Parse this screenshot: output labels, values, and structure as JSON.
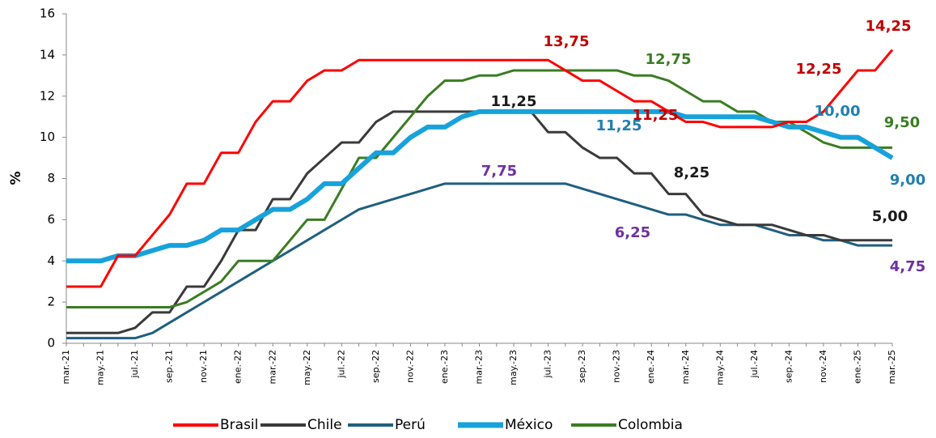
{
  "chart_data": {
    "type": "line",
    "y_label": "%",
    "categories": [
      "mar.-21",
      null,
      "may.-21",
      null,
      "jul.-21",
      null,
      "sep.-21",
      null,
      "nov.-21",
      null,
      "ene.-22",
      null,
      "mar.-22",
      null,
      "may.-22",
      null,
      "jul.-22",
      null,
      "sep.-22",
      null,
      "nov.-22",
      null,
      "ene.-23",
      null,
      "mar.-23",
      null,
      "may.-23",
      null,
      "jul.-23",
      null,
      "sep.-23",
      null,
      "nov.-23",
      null,
      "ene.-24",
      null,
      "mar.-24",
      null,
      "may.-24",
      null,
      "jul.-24",
      null,
      "sep.-24",
      null,
      "nov.-24",
      null,
      "ene.-25",
      null,
      "mar.-25"
    ],
    "ylim": [
      0,
      16
    ],
    "yticks": [
      0,
      2,
      4,
      6,
      8,
      10,
      12,
      14,
      16
    ],
    "grid": false,
    "legend": "bottom",
    "series": [
      {
        "name": "Brasil",
        "color": "#ff0000",
        "values": [
          2.75,
          2.75,
          2.75,
          4.25,
          4.25,
          5.25,
          6.25,
          7.75,
          7.75,
          9.25,
          9.25,
          10.75,
          11.75,
          11.75,
          12.75,
          13.25,
          13.25,
          13.75,
          13.75,
          13.75,
          13.75,
          13.75,
          13.75,
          13.75,
          13.75,
          13.75,
          13.75,
          13.75,
          13.75,
          13.25,
          12.75,
          12.75,
          12.25,
          11.75,
          11.75,
          11.25,
          10.75,
          10.75,
          10.5,
          10.5,
          10.5,
          10.5,
          10.75,
          10.75,
          11.25,
          12.25,
          13.25,
          13.25,
          14.25
        ]
      },
      {
        "name": "Chile",
        "color": "#3a3a3a",
        "values": [
          0.5,
          0.5,
          0.5,
          0.5,
          0.75,
          1.5,
          1.5,
          2.75,
          2.75,
          4.0,
          5.5,
          5.5,
          7.0,
          7.0,
          8.25,
          9.0,
          9.75,
          9.75,
          10.75,
          11.25,
          11.25,
          11.25,
          11.25,
          11.25,
          11.25,
          11.25,
          11.25,
          11.25,
          10.25,
          10.25,
          9.5,
          9.0,
          9.0,
          8.25,
          8.25,
          7.25,
          7.25,
          6.25,
          6.0,
          5.75,
          5.75,
          5.75,
          5.5,
          5.25,
          5.25,
          5.0,
          5.0,
          5.0,
          5.0
        ]
      },
      {
        "name": "Perú",
        "color": "#1f5f7f",
        "values": [
          0.25,
          0.25,
          0.25,
          0.25,
          0.25,
          0.5,
          1.0,
          1.5,
          2.0,
          2.5,
          3.0,
          3.5,
          4.0,
          4.5,
          5.0,
          5.5,
          6.0,
          6.5,
          6.75,
          7.0,
          7.25,
          7.5,
          7.75,
          7.75,
          7.75,
          7.75,
          7.75,
          7.75,
          7.75,
          7.75,
          7.5,
          7.25,
          7.0,
          6.75,
          6.5,
          6.25,
          6.25,
          6.0,
          5.75,
          5.75,
          5.75,
          5.5,
          5.25,
          5.25,
          5.0,
          5.0,
          4.75,
          4.75,
          4.75
        ]
      },
      {
        "name": "México",
        "color": "#17a2dc",
        "values": [
          4.0,
          4.0,
          4.0,
          4.25,
          4.25,
          4.5,
          4.75,
          4.75,
          5.0,
          5.5,
          5.5,
          6.0,
          6.5,
          6.5,
          7.0,
          7.75,
          7.75,
          8.5,
          9.25,
          9.25,
          10.0,
          10.5,
          10.5,
          11.0,
          11.25,
          11.25,
          11.25,
          11.25,
          11.25,
          11.25,
          11.25,
          11.25,
          11.25,
          11.25,
          11.25,
          11.25,
          11.0,
          11.0,
          11.0,
          11.0,
          11.0,
          10.75,
          10.5,
          10.5,
          10.25,
          10.0,
          10.0,
          9.5,
          9.0
        ]
      },
      {
        "name": "Colombia",
        "color": "#3a7d22",
        "values": [
          1.75,
          1.75,
          1.75,
          1.75,
          1.75,
          1.75,
          1.75,
          2.0,
          2.5,
          3.0,
          4.0,
          4.0,
          4.0,
          5.0,
          6.0,
          6.0,
          7.5,
          9.0,
          9.0,
          10.0,
          11.0,
          12.0,
          12.75,
          12.75,
          13.0,
          13.0,
          13.25,
          13.25,
          13.25,
          13.25,
          13.25,
          13.25,
          13.25,
          13.0,
          13.0,
          12.75,
          12.25,
          11.75,
          11.75,
          11.25,
          11.25,
          10.75,
          10.75,
          10.25,
          9.75,
          9.5,
          9.5,
          9.5,
          9.5
        ]
      }
    ],
    "annotations": [
      {
        "text": "13,75",
        "color": "#c00000"
      },
      {
        "text": "14,25",
        "color": "#c00000"
      },
      {
        "text": "12,25",
        "color": "#c00000"
      },
      {
        "text": "11,25",
        "color": "#c00000"
      },
      {
        "text": "12,75",
        "color": "#3a7d22"
      },
      {
        "text": "9,50",
        "color": "#3a7d22"
      },
      {
        "text": "11,25",
        "color": "#1a1a1a"
      },
      {
        "text": "8,25",
        "color": "#1a1a1a"
      },
      {
        "text": "5,00",
        "color": "#1a1a1a"
      },
      {
        "text": "7,75",
        "color": "#7030a0"
      },
      {
        "text": "6,25",
        "color": "#7030a0"
      },
      {
        "text": "4,75",
        "color": "#7030a0"
      },
      {
        "text": "11,25",
        "color": "#1f7fb0"
      },
      {
        "text": "10,00",
        "color": "#1f7fb0"
      },
      {
        "text": "9,00",
        "color": "#1f7fb0"
      }
    ]
  }
}
